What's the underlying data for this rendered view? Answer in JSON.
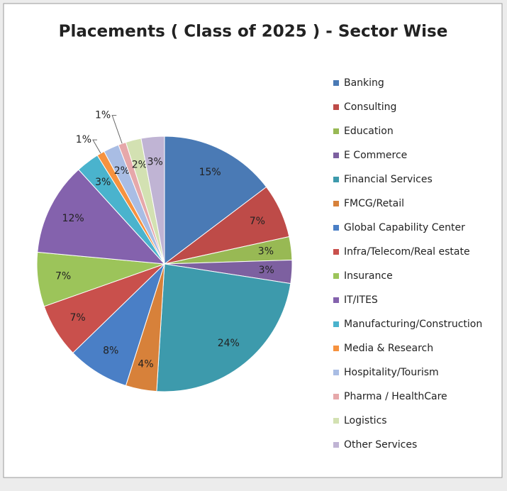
{
  "chart_data": {
    "type": "pie",
    "title": "Placements ( Class of 2025 ) - Sector Wise",
    "categories": [
      "Banking",
      "Consulting",
      "Education",
      "E Commerce",
      "Financial Services",
      "FMCG/Retail",
      "Global Capability Center",
      "Infra/Telecom/Real estate",
      "Insurance",
      "IT/ITES",
      "Manufacturing/Construction",
      "Media & Research",
      "Hospitality/Tourism",
      "Pharma / HealthCare",
      "Logistics",
      "Other Services"
    ],
    "values": [
      15,
      7,
      3,
      3,
      24,
      4,
      8,
      7,
      7,
      12,
      3,
      1,
      2,
      1,
      2,
      3
    ],
    "value_labels": [
      "15%",
      "7%",
      "3%",
      "3%",
      "24%",
      "4%",
      "8%",
      "7%",
      "7%",
      "12%",
      "3%",
      "1%",
      "2%",
      "1%",
      "2%",
      "3%"
    ],
    "colors": [
      "#4a7ab5",
      "#be4b48",
      "#98b954",
      "#7d60a0",
      "#3d9aac",
      "#d7813a",
      "#4a7fc6",
      "#c9504c",
      "#9cc45a",
      "#8462ad",
      "#4ab3cd",
      "#f6923f",
      "#a9bde4",
      "#e6a8aa",
      "#d3e1b2",
      "#c0b4d4"
    ],
    "legend": "right"
  }
}
